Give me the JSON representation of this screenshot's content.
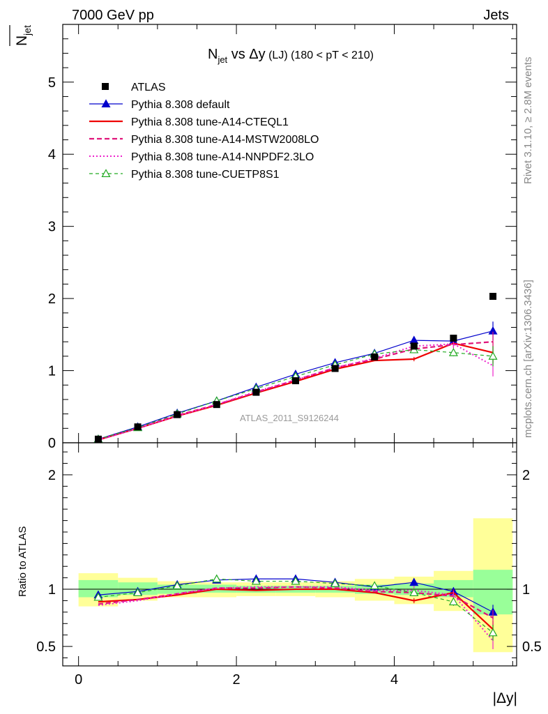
{
  "header": {
    "left": "7000 GeV pp",
    "right": "Jets"
  },
  "chart_data": {
    "type": "line",
    "title": "N_jet vs Δy (LJ) (180 < pT < 210)",
    "title_parts": {
      "n": "N",
      "sub": "jet",
      "vs": " vs ",
      "dy": "Δy",
      "lj": " (LJ)",
      "range": " (180 < pT < 210)"
    },
    "ylabel": "N_jet",
    "ylabel_parts": {
      "n": "N",
      "sub": "jet"
    },
    "xlabel": "|Δy|",
    "ratio_ylabel": "Ratio to ATLAS",
    "analysis_tag": "ATLAS_2011_S9126244",
    "side_label_top": "Rivet 3.1.10, ≥ 2.8M events",
    "side_label_bottom": "mcplots.cern.ch [arXiv:1306.3436]",
    "xlim": [
      -0.2,
      5.55
    ],
    "ylim": [
      0,
      5.8
    ],
    "ratio_ylim": [
      0.33,
      2.28
    ],
    "x_ticks": [
      0,
      2,
      4
    ],
    "y_ticks": [
      0,
      1,
      2,
      3,
      4,
      5
    ],
    "ratio_ticks": [
      0.5,
      1,
      2
    ],
    "grid": false,
    "legend_position": "top-left",
    "x": [
      0.25,
      0.75,
      1.25,
      1.75,
      2.25,
      2.75,
      3.25,
      3.75,
      4.25,
      4.75,
      5.25
    ],
    "bin_edges": [
      0.0,
      0.5,
      1.0,
      1.5,
      2.0,
      2.5,
      3.0,
      3.5,
      4.0,
      4.5,
      5.0,
      5.5
    ],
    "band_green": [
      {
        "lo": 0.93,
        "hi": 1.08
      },
      {
        "lo": 0.95,
        "hi": 1.06
      },
      {
        "lo": 0.96,
        "hi": 1.04
      },
      {
        "lo": 0.97,
        "hi": 1.04
      },
      {
        "lo": 0.97,
        "hi": 1.03
      },
      {
        "lo": 0.97,
        "hi": 1.03
      },
      {
        "lo": 0.97,
        "hi": 1.03
      },
      {
        "lo": 0.96,
        "hi": 1.04
      },
      {
        "lo": 0.95,
        "hi": 1.05
      },
      {
        "lo": 0.93,
        "hi": 1.08
      },
      {
        "lo": 0.78,
        "hi": 1.17
      }
    ],
    "band_yellow": [
      {
        "lo": 0.85,
        "hi": 1.14
      },
      {
        "lo": 0.9,
        "hi": 1.1
      },
      {
        "lo": 0.93,
        "hi": 1.07
      },
      {
        "lo": 0.93,
        "hi": 1.06
      },
      {
        "lo": 0.94,
        "hi": 1.06
      },
      {
        "lo": 0.94,
        "hi": 1.06
      },
      {
        "lo": 0.93,
        "hi": 1.07
      },
      {
        "lo": 0.9,
        "hi": 1.09
      },
      {
        "lo": 0.87,
        "hi": 1.11
      },
      {
        "lo": 0.81,
        "hi": 1.16
      },
      {
        "lo": 0.45,
        "hi": 1.62
      }
    ],
    "series": [
      {
        "name": "ATLAS",
        "color": "#000000",
        "style": "data",
        "values": [
          0.05,
          0.22,
          0.39,
          0.53,
          0.7,
          0.86,
          1.03,
          1.19,
          1.34,
          1.45,
          2.03
        ],
        "ratio": [
          1,
          1,
          1,
          1,
          1,
          1,
          1,
          1,
          1,
          1,
          1
        ]
      },
      {
        "name": "Pythia 8.308 default",
        "color": "#0000cc",
        "style": "solid-thin",
        "marker": "triangle-filled",
        "values": [
          0.05,
          0.22,
          0.41,
          0.58,
          0.77,
          0.95,
          1.11,
          1.24,
          1.42,
          1.41,
          1.55
        ],
        "ratio": [
          0.95,
          0.98,
          1.04,
          1.08,
          1.09,
          1.09,
          1.06,
          1.02,
          1.06,
          0.98,
          0.8
        ],
        "errors": [
          0,
          0,
          0,
          0,
          0,
          0,
          0,
          0,
          0.04,
          0.03,
          0.13
        ]
      },
      {
        "name": "Pythia 8.308 tune-A14-CTEQL1",
        "color": "#ee0000",
        "style": "solid-thick",
        "marker": "none",
        "values": [
          0.04,
          0.2,
          0.37,
          0.52,
          0.69,
          0.85,
          1.02,
          1.14,
          1.16,
          1.38,
          1.25
        ],
        "ratio": [
          0.89,
          0.91,
          0.95,
          1.0,
          0.99,
          1.0,
          1.0,
          0.97,
          0.9,
          0.97,
          0.65
        ],
        "errors": [
          0,
          0,
          0,
          0,
          0,
          0,
          0,
          0,
          0.03,
          0.04,
          0.15
        ]
      },
      {
        "name": "Pythia 8.308 tune-A14-MSTW2008LO",
        "color": "#e0147a",
        "style": "dashed",
        "marker": "none",
        "values": [
          0.04,
          0.2,
          0.38,
          0.53,
          0.7,
          0.87,
          1.04,
          1.16,
          1.3,
          1.36,
          1.4
        ],
        "ratio": [
          0.87,
          0.91,
          0.96,
          1.01,
          1.01,
          1.02,
          1.01,
          0.98,
          0.97,
          0.94,
          0.75
        ],
        "errors": [
          0,
          0,
          0,
          0,
          0,
          0,
          0,
          0,
          0.04,
          0.05,
          0.14
        ]
      },
      {
        "name": "Pythia 8.308 tune-A14-NNPDF2.3LO",
        "color": "#ee22cc",
        "style": "dotted",
        "marker": "none",
        "values": [
          0.04,
          0.2,
          0.37,
          0.53,
          0.71,
          0.87,
          1.04,
          1.17,
          1.34,
          1.37,
          1.07
        ],
        "ratio": [
          0.86,
          0.9,
          0.96,
          1.01,
          1.02,
          1.02,
          1.02,
          0.99,
          0.99,
          0.95,
          0.55
        ],
        "errors": [
          0,
          0,
          0,
          0,
          0,
          0,
          0,
          0,
          0.05,
          0.05,
          0.15
        ]
      },
      {
        "name": "Pythia 8.308 tune-CUETP8S1",
        "color": "#22aa22",
        "style": "dashed-thin",
        "marker": "triangle-open",
        "values": [
          0.05,
          0.21,
          0.4,
          0.58,
          0.75,
          0.92,
          1.08,
          1.23,
          1.29,
          1.25,
          1.2
        ],
        "ratio": [
          0.93,
          0.97,
          1.03,
          1.09,
          1.07,
          1.07,
          1.05,
          1.03,
          0.97,
          0.89,
          0.62
        ],
        "errors": [
          0,
          0,
          0,
          0,
          0,
          0,
          0,
          0,
          0.04,
          0.05,
          0.14
        ]
      }
    ]
  }
}
